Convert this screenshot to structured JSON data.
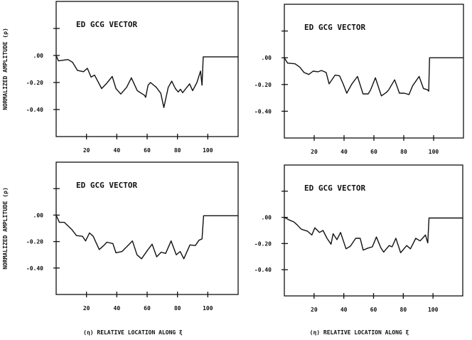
{
  "chart_data": [
    {
      "type": "line",
      "title": "ED GCG VECTOR",
      "ylabel": "NORMALIZED AMPLITUDE (ρ)",
      "xlabel": "",
      "xlim": [
        0,
        120
      ],
      "ylim": [
        -0.6,
        0.4
      ],
      "xticks": [
        20,
        40,
        60,
        80,
        100
      ],
      "xtick_labels": [
        "20",
        "40",
        "60",
        "80",
        "100"
      ],
      "yticks": [
        0.2,
        0,
        -0.2,
        -0.4
      ],
      "ytick_labels": [
        "",
        ".00",
        "-0.20",
        "-0.40"
      ],
      "grid": false,
      "x": [
        0,
        1.5,
        7.8,
        10.8,
        14,
        18,
        20.6,
        23,
        25.3,
        30,
        33,
        37,
        39.4,
        42.6,
        46.5,
        49.6,
        53.5,
        58.3,
        59,
        60.6,
        62.2,
        66,
        69,
        71,
        73.9,
        76.2,
        78.6,
        80.5,
        82,
        83.4,
        88,
        90,
        92.8,
        95.2,
        96.2,
        97,
        120
      ],
      "y": [
        0,
        -0.04,
        -0.03,
        -0.05,
        -0.11,
        -0.12,
        -0.095,
        -0.16,
        -0.145,
        -0.245,
        -0.21,
        -0.155,
        -0.245,
        -0.285,
        -0.235,
        -0.165,
        -0.26,
        -0.295,
        -0.31,
        -0.22,
        -0.2,
        -0.235,
        -0.28,
        -0.385,
        -0.235,
        -0.19,
        -0.245,
        -0.27,
        -0.25,
        -0.275,
        -0.21,
        -0.26,
        -0.2,
        -0.115,
        -0.22,
        -0.01,
        -0.01
      ]
    },
    {
      "type": "line",
      "title": "ED GCG VECTOR",
      "ylabel": "",
      "xlabel": "",
      "xlim": [
        0,
        120
      ],
      "ylim": [
        -0.6,
        0.4
      ],
      "xticks": [
        20,
        40,
        60,
        80,
        100
      ],
      "xtick_labels": [
        "20",
        "40",
        "60",
        "80",
        "100"
      ],
      "yticks": [
        0.2,
        0,
        -0.2,
        -0.4
      ],
      "ytick_labels": [
        "",
        ".00",
        "-0.20",
        "-0.40"
      ],
      "grid": false,
      "x": [
        0,
        2.2,
        7.2,
        10.4,
        13.2,
        16.4,
        19.3,
        22.5,
        24.9,
        28,
        30,
        34,
        37,
        39.4,
        41.8,
        45.3,
        49,
        52.7,
        56.2,
        57.8,
        61,
        65,
        68.3,
        69.9,
        73.9,
        77.1,
        80.3,
        83.5,
        85.9,
        90.3,
        93.2,
        96,
        96.7,
        97.3,
        120
      ],
      "y": [
        0,
        -0.04,
        -0.045,
        -0.07,
        -0.11,
        -0.125,
        -0.1,
        -0.105,
        -0.095,
        -0.11,
        -0.195,
        -0.13,
        -0.135,
        -0.195,
        -0.265,
        -0.195,
        -0.14,
        -0.27,
        -0.27,
        -0.24,
        -0.15,
        -0.285,
        -0.26,
        -0.24,
        -0.165,
        -0.265,
        -0.265,
        -0.275,
        -0.21,
        -0.14,
        -0.23,
        -0.24,
        -0.25,
        0,
        0
      ]
    },
    {
      "type": "line",
      "title": "ED GCG VECTOR",
      "ylabel": "NORMALIZED AMPLITUDE (ρ)",
      "xlabel": "(η) RELATIVE LOCATION ALONG ξ",
      "xlim": [
        0,
        120
      ],
      "ylim": [
        -0.6,
        0.4
      ],
      "xticks": [
        20,
        40,
        60,
        80,
        100
      ],
      "xtick_labels": [
        "20",
        "40",
        "60",
        "80",
        "100"
      ],
      "yticks": [
        0.2,
        0,
        -0.2,
        -0.4
      ],
      "ytick_labels": [
        "",
        ".00",
        "-0.20",
        "-0.40"
      ],
      "grid": false,
      "x": [
        0,
        2.1,
        5.4,
        10.4,
        13.4,
        17.4,
        19.4,
        22,
        24.4,
        28.4,
        31.4,
        33.4,
        37.4,
        39.4,
        43.4,
        47.3,
        50.3,
        53.3,
        56.3,
        60.3,
        63.3,
        66.3,
        69.3,
        72.2,
        75.8,
        79.2,
        81.8,
        84.2,
        88.2,
        91.8,
        94.2,
        96.2,
        97.2,
        120
      ],
      "y": [
        0,
        -0.055,
        -0.055,
        -0.11,
        -0.155,
        -0.16,
        -0.195,
        -0.135,
        -0.16,
        -0.26,
        -0.23,
        -0.205,
        -0.215,
        -0.285,
        -0.275,
        -0.23,
        -0.195,
        -0.3,
        -0.33,
        -0.265,
        -0.22,
        -0.315,
        -0.28,
        -0.29,
        -0.195,
        -0.3,
        -0.275,
        -0.33,
        -0.225,
        -0.23,
        -0.19,
        -0.18,
        -0.005,
        -0.005
      ]
    },
    {
      "type": "line",
      "title": "ED GCG VECTOR",
      "ylabel": "",
      "xlabel": "(η) RELATIVE LOCATION ALONG ξ",
      "xlim": [
        0,
        120
      ],
      "ylim": [
        -0.6,
        0.4
      ],
      "xticks": [
        20,
        40,
        60,
        80,
        100
      ],
      "xtick_labels": [
        "20",
        "40",
        "60",
        "80",
        "100"
      ],
      "yticks": [
        0.2,
        0,
        -0.2,
        -0.4
      ],
      "ytick_labels": [
        "",
        ".00",
        "-0.20",
        "-0.40"
      ],
      "grid": false,
      "x": [
        0,
        3.3,
        6.4,
        8.4,
        11.4,
        15.5,
        18.5,
        20.5,
        23.6,
        26,
        28.7,
        31.4,
        32.8,
        35.4,
        37.8,
        41.5,
        44.4,
        48,
        51,
        53,
        56.2,
        59.2,
        61.9,
        64.8,
        66.8,
        70.5,
        72.5,
        75,
        78.2,
        82.3,
        84.8,
        88.4,
        91.3,
        94.9,
        96.5,
        97.3,
        120
      ],
      "y": [
        0,
        -0.02,
        -0.035,
        -0.055,
        -0.09,
        -0.105,
        -0.135,
        -0.08,
        -0.115,
        -0.1,
        -0.16,
        -0.205,
        -0.125,
        -0.17,
        -0.115,
        -0.24,
        -0.22,
        -0.16,
        -0.16,
        -0.25,
        -0.235,
        -0.225,
        -0.15,
        -0.23,
        -0.265,
        -0.215,
        -0.225,
        -0.16,
        -0.27,
        -0.215,
        -0.24,
        -0.16,
        -0.18,
        -0.135,
        -0.195,
        -0.005,
        -0.005
      ]
    }
  ]
}
